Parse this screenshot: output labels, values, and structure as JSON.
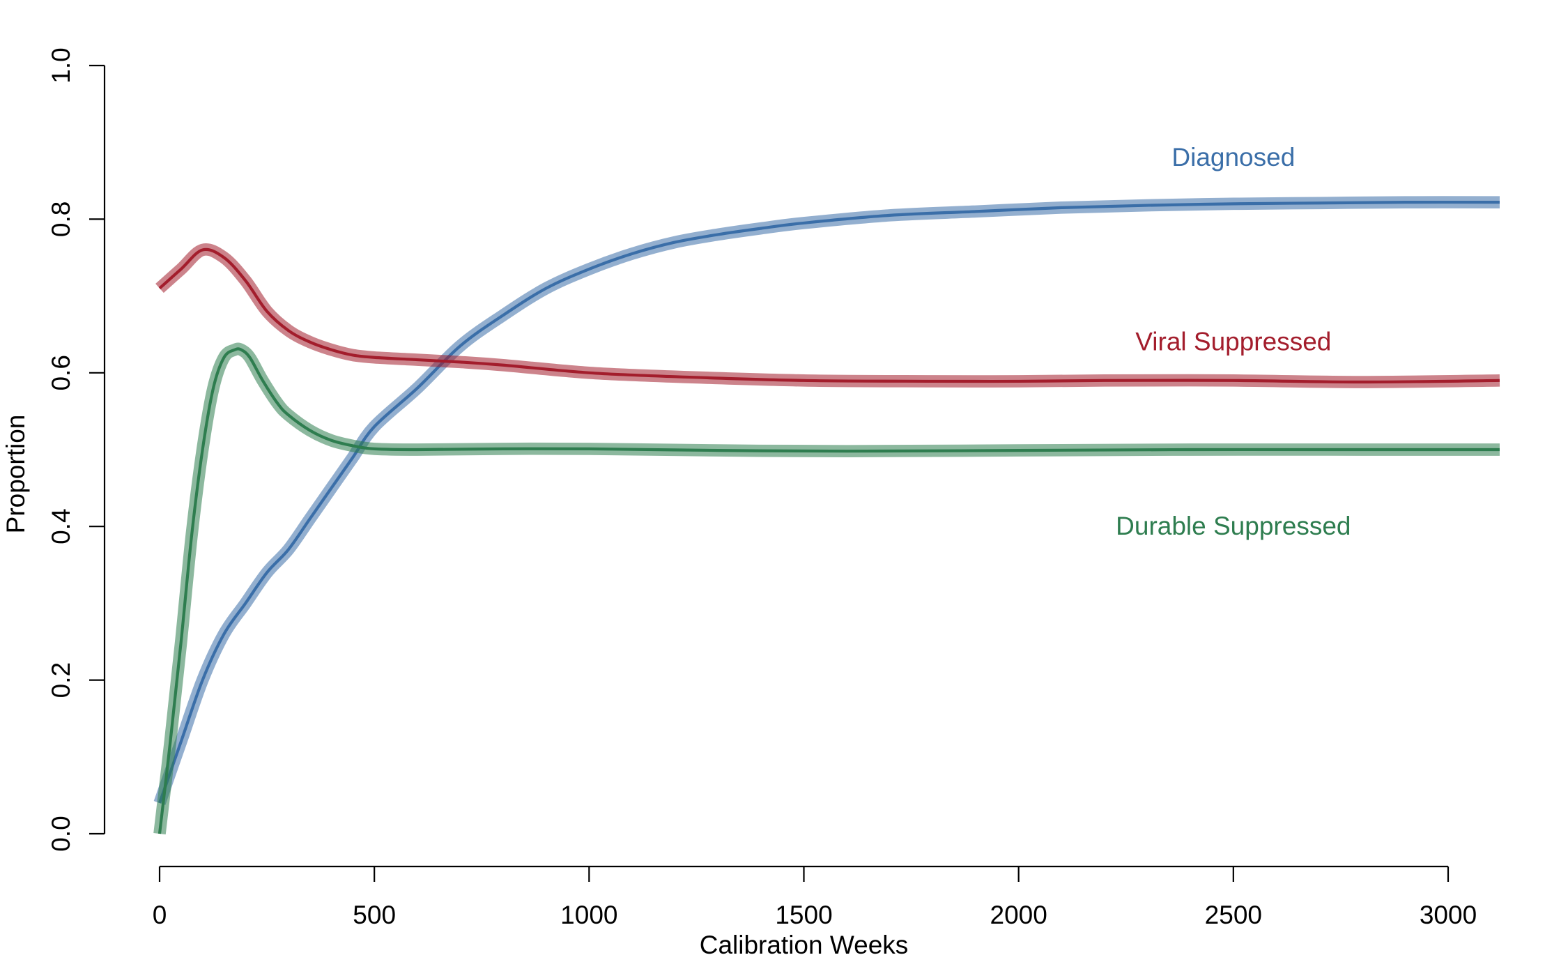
{
  "chart_data": {
    "type": "line",
    "xlabel": "Calibration Weeks",
    "ylabel": "Proportion",
    "xlim": [
      0,
      3120
    ],
    "ylim": [
      0,
      1
    ],
    "x_ticks": [
      0,
      500,
      1000,
      1500,
      2000,
      2500,
      3000
    ],
    "x_tick_labels": [
      "0",
      "500",
      "1000",
      "1500",
      "2000",
      "2500",
      "3000"
    ],
    "y_ticks": [
      0,
      0.2,
      0.4,
      0.6,
      0.8,
      1.0
    ],
    "y_tick_labels": [
      "0.0",
      "0.2",
      "0.4",
      "0.6",
      "0.8",
      "1.0"
    ],
    "grid": false,
    "legend": "none",
    "series": [
      {
        "name": "Diagnosed",
        "color": "#3a6ea8",
        "band_halfwidth": 0.008,
        "label_position": [
          2500,
          0.88
        ],
        "x": [
          0,
          50,
          100,
          150,
          200,
          250,
          300,
          350,
          400,
          450,
          500,
          600,
          700,
          800,
          900,
          1000,
          1100,
          1200,
          1300,
          1400,
          1500,
          1700,
          1900,
          2100,
          2300,
          2500,
          2700,
          2900,
          3120
        ],
        "values": [
          0.04,
          0.12,
          0.2,
          0.26,
          0.3,
          0.34,
          0.37,
          0.41,
          0.45,
          0.49,
          0.53,
          0.58,
          0.635,
          0.675,
          0.71,
          0.735,
          0.755,
          0.77,
          0.78,
          0.788,
          0.795,
          0.805,
          0.81,
          0.815,
          0.818,
          0.82,
          0.821,
          0.822,
          0.822
        ]
      },
      {
        "name": "Viral Suppressed",
        "color": "#a31d2c",
        "band_halfwidth": 0.008,
        "label_position": [
          2500,
          0.64
        ],
        "x": [
          0,
          50,
          100,
          150,
          200,
          250,
          300,
          350,
          400,
          450,
          500,
          600,
          700,
          800,
          1000,
          1200,
          1500,
          1800,
          2000,
          2200,
          2500,
          2800,
          3120
        ],
        "values": [
          0.71,
          0.735,
          0.76,
          0.75,
          0.72,
          0.68,
          0.655,
          0.64,
          0.63,
          0.623,
          0.62,
          0.617,
          0.614,
          0.61,
          0.6,
          0.595,
          0.59,
          0.589,
          0.589,
          0.59,
          0.59,
          0.588,
          0.59
        ]
      },
      {
        "name": "Durable Suppressed",
        "color": "#2e7d4f",
        "band_halfwidth": 0.008,
        "label_position": [
          2500,
          0.4
        ],
        "x": [
          0,
          25,
          50,
          75,
          100,
          125,
          150,
          175,
          190,
          210,
          240,
          275,
          300,
          350,
          400,
          450,
          500,
          600,
          800,
          1000,
          1300,
          1600,
          2000,
          2400,
          2800,
          3120
        ],
        "values": [
          0.0,
          0.12,
          0.25,
          0.39,
          0.5,
          0.58,
          0.62,
          0.63,
          0.63,
          0.62,
          0.59,
          0.56,
          0.545,
          0.525,
          0.512,
          0.505,
          0.501,
          0.5,
          0.501,
          0.501,
          0.499,
          0.498,
          0.499,
          0.5,
          0.5,
          0.5
        ]
      }
    ]
  }
}
